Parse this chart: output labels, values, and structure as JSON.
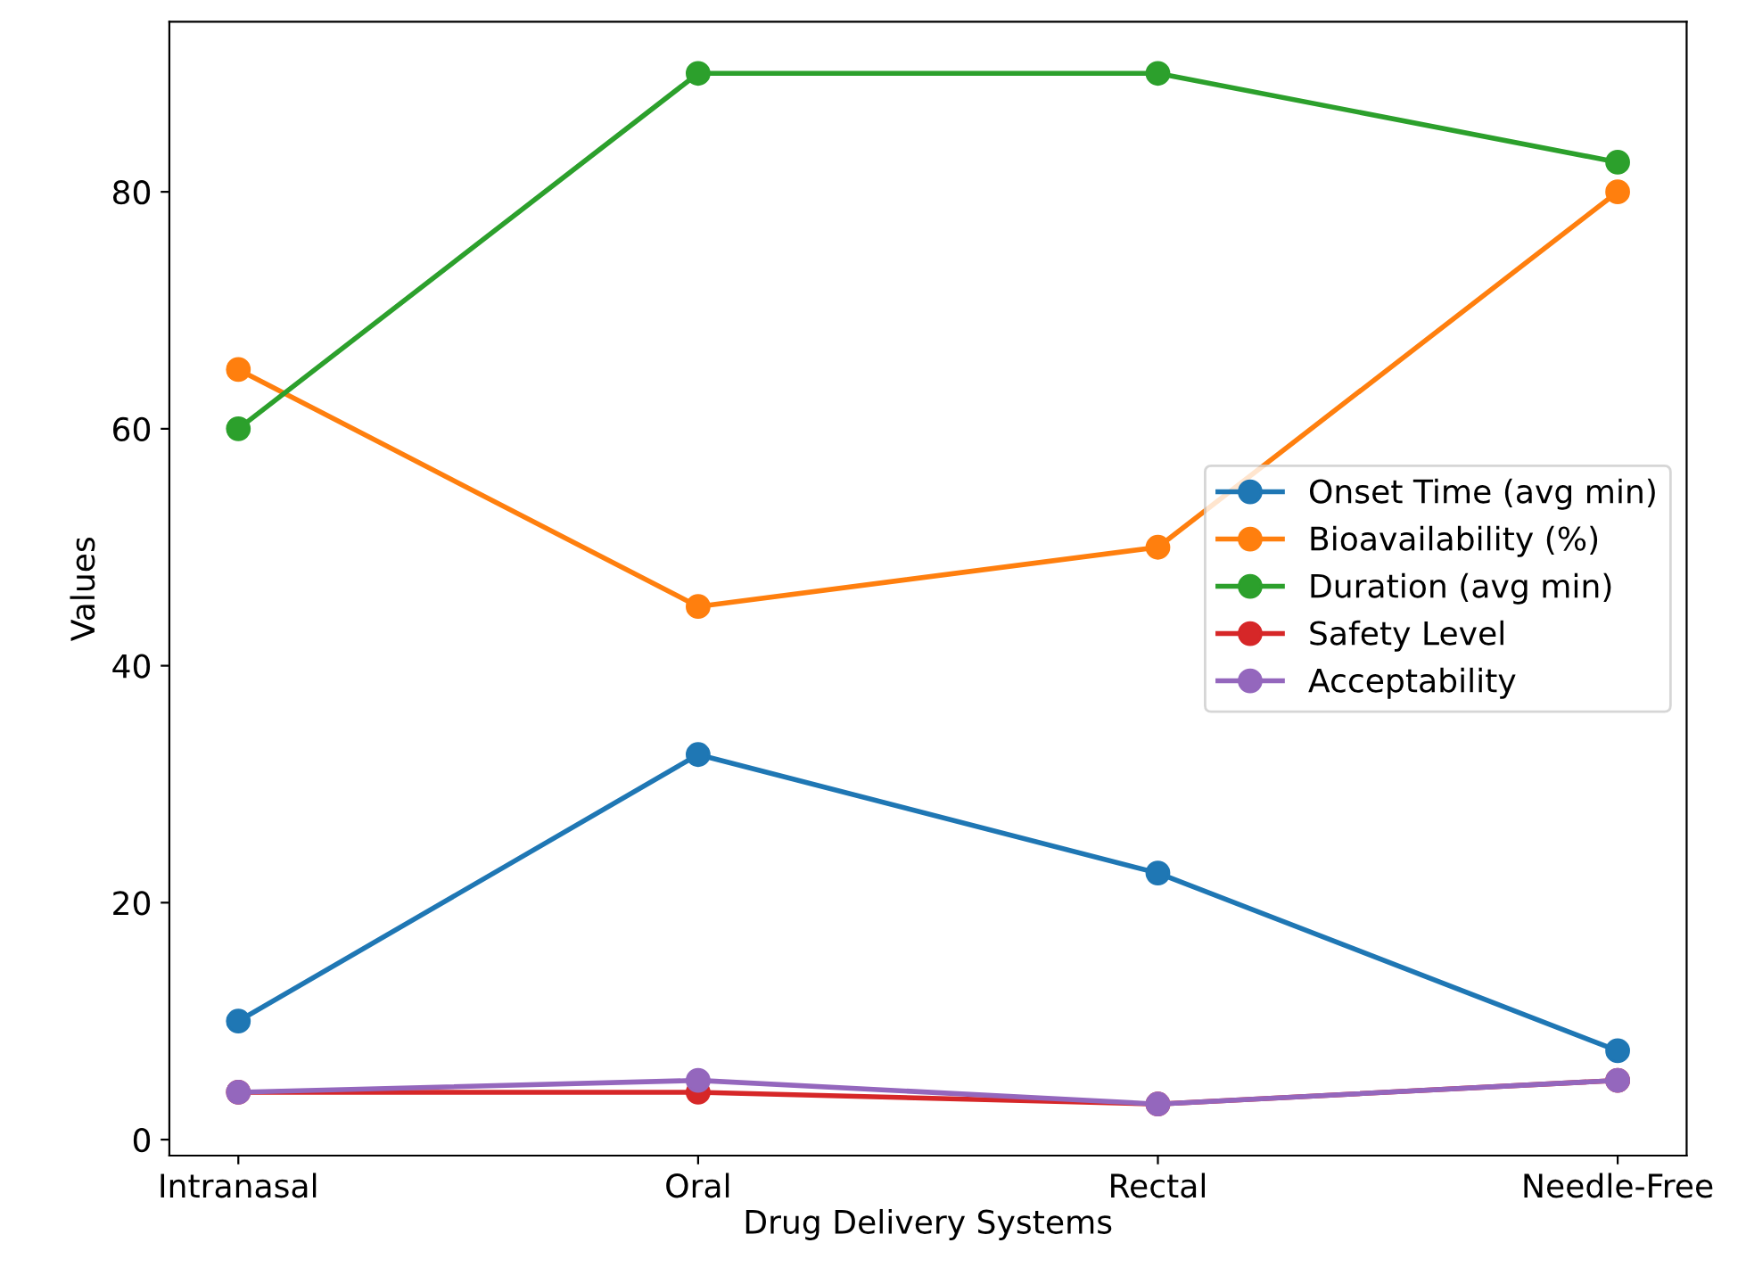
{
  "chart_data": {
    "type": "line",
    "xlabel": "Drug Delivery Systems",
    "ylabel": "Values",
    "categories": [
      "Intranasal",
      "Oral",
      "Rectal",
      "Needle-Free"
    ],
    "series": [
      {
        "name": "Onset Time (avg min)",
        "color": "#1f77b4",
        "values": [
          10,
          32.5,
          22.5,
          7.5
        ]
      },
      {
        "name": "Bioavailability (%)",
        "color": "#ff7f0e",
        "values": [
          65,
          45,
          50,
          80
        ]
      },
      {
        "name": "Duration (avg min)",
        "color": "#2ca02c",
        "values": [
          60,
          90,
          90,
          82.5
        ]
      },
      {
        "name": "Safety Level",
        "color": "#d62728",
        "values": [
          4,
          4,
          3,
          5
        ]
      },
      {
        "name": "Acceptability",
        "color": "#9467bd",
        "values": [
          4,
          5,
          3,
          5
        ]
      }
    ],
    "ylim": [
      -1.35,
      94.35
    ],
    "yticks": [
      0,
      20,
      40,
      60,
      80
    ],
    "marker": "circle",
    "line_style": "solid",
    "legend": "center right",
    "grid": false
  }
}
